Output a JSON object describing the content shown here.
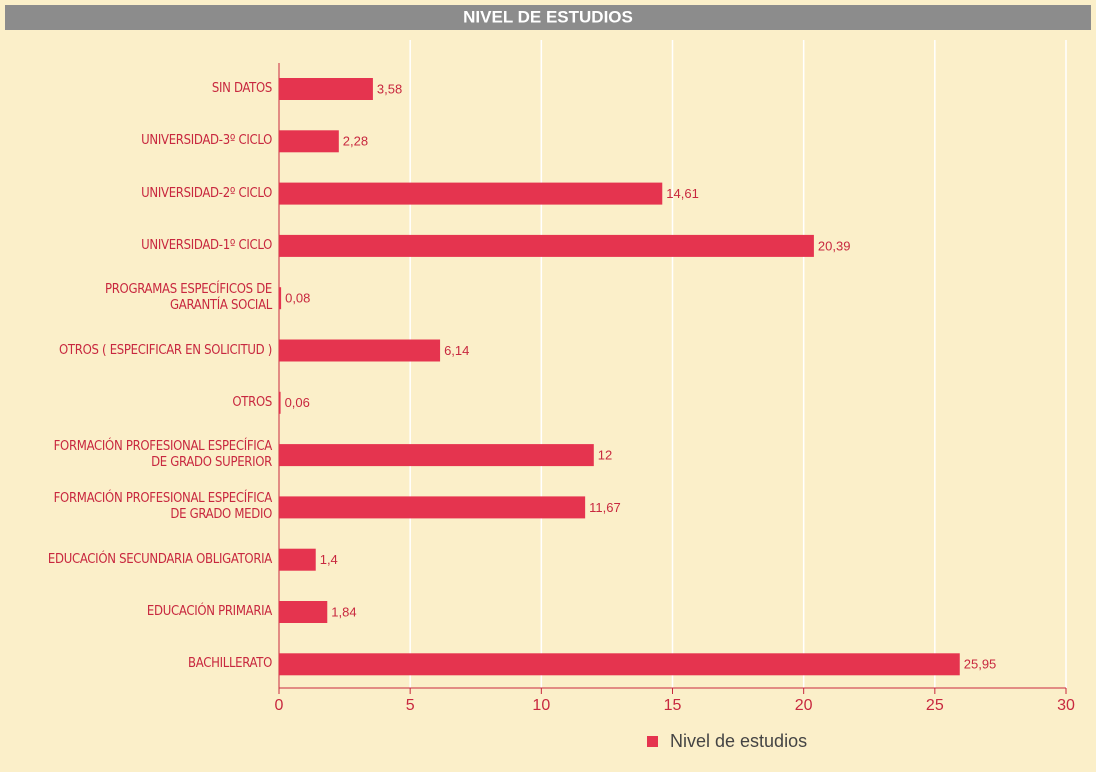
{
  "chart_data": {
    "type": "hbar",
    "title": "NIVEL DE ESTUDIOS",
    "categories": [
      "SIN DATOS",
      "UNIVERSIDAD-3º CICLO",
      "UNIVERSIDAD-2º CICLO",
      "UNIVERSIDAD-1º CICLO",
      "PROGRAMAS ESPECÍFICOS DE\nGARANTÍA SOCIAL",
      "OTROS ( ESPECIFICAR EN SOLICITUD )",
      "OTROS",
      "FORMACIÓN PROFESIONAL ESPECÍFICA\nDE GRADO SUPERIOR",
      "FORMACIÓN PROFESIONAL ESPECÍFICA\nDE GRADO MEDIO",
      "EDUCACIÓN SECUNDARIA OBLIGATORIA",
      "EDUCACIÓN PRIMARIA",
      "BACHILLERATO"
    ],
    "series": [
      {
        "name": "Nivel de estudios",
        "color": "#e5344f",
        "values": [
          3.58,
          2.28,
          14.61,
          20.39,
          0.08,
          6.14,
          0.06,
          12,
          11.67,
          1.4,
          1.84,
          25.95
        ],
        "value_labels": [
          "3,58",
          "2,28",
          "14,61",
          "20,39",
          "0,08",
          "6,14",
          "0,06",
          "12",
          "11,67",
          "1,4",
          "1,84",
          "25,95"
        ]
      }
    ],
    "xlim": [
      0,
      30
    ],
    "xticks": [
      0,
      5,
      10,
      15,
      20,
      25,
      30
    ],
    "grid": true,
    "legend": "bottom"
  }
}
